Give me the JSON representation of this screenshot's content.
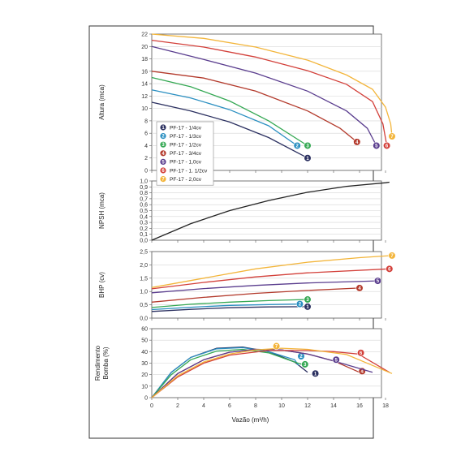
{
  "chart_data": {
    "type": "line",
    "x": {
      "label": "Vazão (m³/h)",
      "ticks": [
        0,
        2,
        4,
        6,
        8,
        10,
        12,
        14,
        16,
        18
      ],
      "range": [
        0,
        19
      ]
    },
    "colors": [
      "#2b3060",
      "#2a8fc1",
      "#34a853",
      "#b33a2c",
      "#5a3d8e",
      "#d3403a",
      "#f3b53a"
    ],
    "legend": {
      "placement": "top-left of Altura panel",
      "entries": [
        "PF-17 - 1/4cv",
        "PF-17 - 1/3cv",
        "PF-17 - 1/2cv",
        "PF-17 - 3/4cv",
        "PF-17 - 1,0cv",
        "PF-17 - 1. 1/2cv",
        "PF-17 - 2,0cv"
      ]
    },
    "panels": [
      {
        "id": "altura",
        "ylabel": "Altura (mca)",
        "ylim": [
          0,
          22
        ],
        "yticks": [
          "0",
          "2",
          "4",
          "6",
          "8",
          "10",
          "12",
          "14",
          "16",
          "18",
          "20",
          "22"
        ],
        "series": [
          {
            "badge": "1",
            "points": [
              [
                0,
                11
              ],
              [
                3,
                9.6
              ],
              [
                6,
                7.8
              ],
              [
                9,
                5.3
              ],
              [
                12,
                2
              ]
            ]
          },
          {
            "badge": "2",
            "points": [
              [
                0,
                13
              ],
              [
                3,
                11.7
              ],
              [
                6,
                9.8
              ],
              [
                9,
                7.2
              ],
              [
                11.2,
                4
              ]
            ]
          },
          {
            "badge": "3",
            "points": [
              [
                0,
                15
              ],
              [
                3,
                13.5
              ],
              [
                6,
                11.2
              ],
              [
                9,
                8
              ],
              [
                12,
                4
              ]
            ]
          },
          {
            "badge": "4",
            "points": [
              [
                0,
                16
              ],
              [
                4,
                14.9
              ],
              [
                8,
                12.8
              ],
              [
                12,
                9.6
              ],
              [
                14.5,
                6.8
              ],
              [
                15.8,
                4.6
              ]
            ]
          },
          {
            "badge": "5",
            "points": [
              [
                0,
                20
              ],
              [
                4,
                17.9
              ],
              [
                8,
                15.7
              ],
              [
                12,
                12.8
              ],
              [
                15,
                9.6
              ],
              [
                16.6,
                6.8
              ],
              [
                17.3,
                4
              ]
            ]
          },
          {
            "badge": "6",
            "points": [
              [
                0,
                21
              ],
              [
                4,
                19.9
              ],
              [
                8,
                18.3
              ],
              [
                12,
                16.1
              ],
              [
                15,
                13.9
              ],
              [
                17,
                11.1
              ],
              [
                17.8,
                7.5
              ],
              [
                18.1,
                4
              ]
            ]
          },
          {
            "badge": "7",
            "points": [
              [
                0,
                22
              ],
              [
                4,
                21.3
              ],
              [
                8,
                19.9
              ],
              [
                12,
                17.8
              ],
              [
                15,
                15.4
              ],
              [
                17,
                13.1
              ],
              [
                18,
                10.2
              ],
              [
                18.4,
                7.5
              ],
              [
                18.5,
                5.5
              ]
            ]
          }
        ]
      },
      {
        "id": "npsh",
        "ylabel": "NPSH (mca)",
        "ylim": [
          0,
          1
        ],
        "yticks": [
          "0,0",
          "0,1",
          "0,2",
          "0,3",
          "0,4",
          "0,5",
          "0,6",
          "0,7",
          "0,8",
          "0,9",
          "1,0"
        ],
        "series": [
          {
            "color": "#222222",
            "points": [
              [
                0,
                0
              ],
              [
                3,
                0.28
              ],
              [
                6,
                0.5
              ],
              [
                9,
                0.67
              ],
              [
                12,
                0.81
              ],
              [
                15,
                0.91
              ],
              [
                18,
                0.97
              ],
              [
                18.3,
                0.98
              ]
            ]
          }
        ]
      },
      {
        "id": "bhp",
        "ylabel": "BHP (cv)",
        "ylim": [
          0,
          2.5
        ],
        "yticks": [
          "0,0",
          "0,5",
          "1,0",
          "1,5",
          "2,0",
          "2,5"
        ],
        "series": [
          {
            "badge": "1",
            "points": [
              [
                0,
                0.25
              ],
              [
                3,
                0.33
              ],
              [
                6,
                0.39
              ],
              [
                9,
                0.42
              ],
              [
                12,
                0.43
              ]
            ]
          },
          {
            "badge": "2",
            "points": [
              [
                0,
                0.32
              ],
              [
                3,
                0.41
              ],
              [
                6,
                0.48
              ],
              [
                9,
                0.51
              ],
              [
                11.4,
                0.53
              ]
            ]
          },
          {
            "badge": "3",
            "points": [
              [
                0,
                0.4
              ],
              [
                3,
                0.52
              ],
              [
                6,
                0.6
              ],
              [
                9,
                0.66
              ],
              [
                12,
                0.7
              ]
            ]
          },
          {
            "badge": "4",
            "points": [
              [
                0,
                0.6
              ],
              [
                4,
                0.78
              ],
              [
                8,
                0.93
              ],
              [
                12,
                1.04
              ],
              [
                16,
                1.13
              ]
            ]
          },
          {
            "badge": "5",
            "points": [
              [
                0,
                0.95
              ],
              [
                4,
                1.11
              ],
              [
                8,
                1.23
              ],
              [
                12,
                1.32
              ],
              [
                17.4,
                1.4
              ]
            ]
          },
          {
            "badge": "6",
            "points": [
              [
                0,
                1.1
              ],
              [
                4,
                1.34
              ],
              [
                8,
                1.55
              ],
              [
                12,
                1.7
              ],
              [
                18.3,
                1.85
              ]
            ]
          },
          {
            "badge": "7",
            "points": [
              [
                0,
                1.15
              ],
              [
                4,
                1.5
              ],
              [
                8,
                1.85
              ],
              [
                12,
                2.1
              ],
              [
                16,
                2.27
              ],
              [
                18.5,
                2.35
              ]
            ]
          }
        ]
      },
      {
        "id": "rendimento",
        "ylabel": "Rendimento Bomba (%)",
        "ylim": [
          0,
          60
        ],
        "yticks": [
          "0",
          "10",
          "20",
          "30",
          "40",
          "50",
          "60"
        ],
        "series": [
          {
            "badge": "1",
            "points": [
              [
                0,
                0
              ],
              [
                1.5,
                22
              ],
              [
                3,
                35
              ],
              [
                5,
                43
              ],
              [
                7,
                44
              ],
              [
                9,
                40
              ],
              [
                11,
                31
              ],
              [
                12,
                22
              ]
            ]
          },
          {
            "badge": "2",
            "points": [
              [
                0,
                0
              ],
              [
                1.5,
                22
              ],
              [
                3,
                35
              ],
              [
                5,
                42.5
              ],
              [
                7,
                43.5
              ],
              [
                9,
                40
              ],
              [
                11,
                33
              ],
              [
                11.3,
                28
              ]
            ]
          },
          {
            "badge": "3",
            "points": [
              [
                0,
                0
              ],
              [
                1.5,
                20
              ],
              [
                3,
                33
              ],
              [
                5,
                40.5
              ],
              [
                7,
                42
              ],
              [
                9,
                39
              ],
              [
                11,
                31
              ],
              [
                11.8,
                28
              ]
            ]
          },
          {
            "badge": "4",
            "points": [
              [
                0,
                0
              ],
              [
                2,
                21
              ],
              [
                4,
                33
              ],
              [
                6,
                39.5
              ],
              [
                8,
                42
              ],
              [
                10,
                41.5
              ],
              [
                12,
                38
              ],
              [
                14,
                32
              ],
              [
                16,
                22
              ]
            ]
          },
          {
            "badge": "5",
            "points": [
              [
                0,
                0
              ],
              [
                2,
                21
              ],
              [
                4,
                33
              ],
              [
                6,
                39.5
              ],
              [
                8,
                42
              ],
              [
                10,
                41.5
              ],
              [
                12,
                38
              ],
              [
                14,
                32
              ],
              [
                17,
                22
              ]
            ]
          },
          {
            "badge": "6",
            "points": [
              [
                0,
                0
              ],
              [
                2,
                18
              ],
              [
                4,
                30
              ],
              [
                6,
                37
              ],
              [
                9,
                41
              ],
              [
                12,
                41
              ],
              [
                14,
                40
              ],
              [
                15.9,
                38
              ],
              [
                18.3,
                22
              ]
            ]
          },
          {
            "badge": "7",
            "points": [
              [
                0,
                0
              ],
              [
                2,
                19
              ],
              [
                4,
                31
              ],
              [
                6,
                38
              ],
              [
                8,
                41.5
              ],
              [
                10,
                43
              ],
              [
                12,
                42
              ],
              [
                15,
                37.5
              ],
              [
                17,
                28
              ],
              [
                18.5,
                21
              ]
            ]
          }
        ],
        "badge_points": [
          [
            12.6,
            21
          ],
          [
            11.5,
            36
          ],
          [
            11.8,
            29
          ],
          [
            16.2,
            23
          ],
          [
            14.2,
            33
          ],
          [
            16.1,
            39
          ],
          [
            9.6,
            44.8
          ]
        ]
      }
    ]
  }
}
